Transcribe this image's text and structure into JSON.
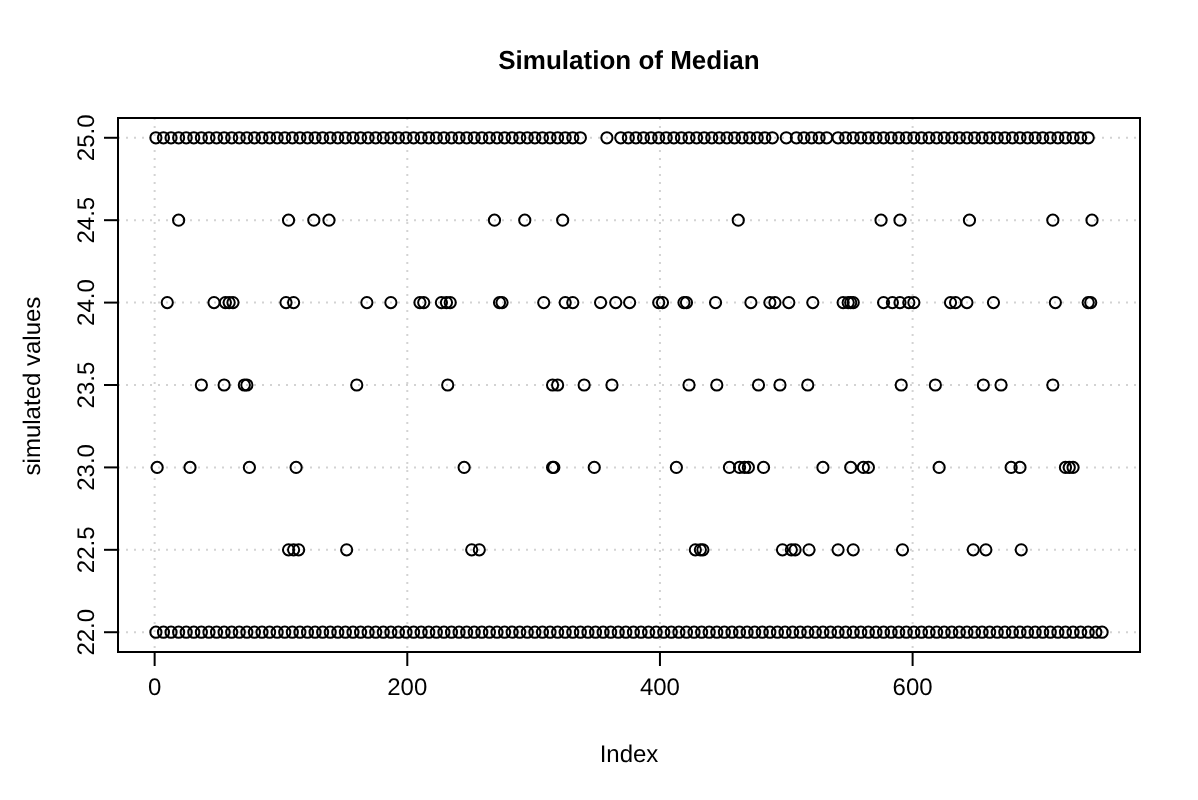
{
  "chart_data": {
    "type": "scatter",
    "title": "Simulation of Median",
    "xlabel": "Index",
    "ylabel": "simulated values",
    "color": "#000000",
    "marker": "circle",
    "grid": true,
    "xlim": [
      -29,
      780
    ],
    "xticks": [
      0,
      200,
      400,
      600
    ],
    "ylim": [
      21.88,
      25.12
    ],
    "yticks": [
      {
        "value": 22,
        "label": "22.0"
      },
      22.5,
      {
        "value": 23,
        "label": "23.0"
      },
      23.5,
      {
        "value": 24,
        "label": "24.0"
      },
      24.5,
      {
        "value": 25,
        "label": "25.0"
      }
    ],
    "x": [
      1,
      7,
      13,
      19,
      25,
      31,
      37,
      43,
      49,
      55,
      61,
      67,
      73,
      79,
      85,
      91,
      97,
      103,
      109,
      115,
      121,
      127,
      133,
      139,
      145,
      151,
      157,
      163,
      169,
      175,
      181,
      187,
      193,
      199,
      205,
      211,
      217,
      223,
      229,
      235,
      241,
      247,
      253,
      259,
      265,
      271,
      277,
      283,
      289,
      295,
      301,
      307,
      313,
      319,
      325,
      331,
      337,
      358,
      369,
      375,
      381,
      387,
      393,
      399,
      405,
      411,
      417,
      423,
      429,
      435,
      441,
      447,
      453,
      459,
      465,
      471,
      477,
      483,
      489,
      500,
      508,
      514,
      520,
      526,
      532,
      541,
      547,
      553,
      559,
      565,
      571,
      577,
      583,
      589,
      595,
      601,
      607,
      613,
      619,
      625,
      631,
      637,
      643,
      649,
      655,
      661,
      667,
      673,
      679,
      685,
      691,
      697,
      703,
      709,
      715,
      721,
      727,
      733,
      739,
      19,
      106,
      126,
      138,
      269,
      293,
      323,
      462,
      575,
      590,
      645,
      711,
      742,
      10,
      47,
      56,
      59,
      62,
      104,
      110,
      168,
      187,
      210,
      213,
      227,
      231,
      234,
      273,
      275,
      308,
      325,
      331,
      353,
      365,
      376,
      399,
      402,
      419,
      421,
      444,
      472,
      487,
      491,
      502,
      521,
      545,
      549,
      551,
      553,
      577,
      584,
      590,
      597,
      601,
      630,
      634,
      643,
      664,
      713,
      739,
      741,
      37,
      55,
      71,
      73,
      160,
      232,
      315,
      319,
      340,
      362,
      423,
      445,
      478,
      495,
      517,
      591,
      618,
      656,
      670,
      711,
      2,
      28,
      75,
      112,
      245,
      315,
      316,
      348,
      413,
      455,
      463,
      467,
      470,
      482,
      529,
      551,
      561,
      565,
      621,
      678,
      685,
      721,
      724,
      727,
      106,
      110,
      114,
      152,
      251,
      257,
      428,
      432,
      434,
      497,
      504,
      507,
      518,
      541,
      553,
      592,
      648,
      658,
      686,
      1,
      7,
      13,
      19,
      25,
      31,
      37,
      43,
      49,
      55,
      61,
      67,
      73,
      79,
      85,
      91,
      97,
      103,
      109,
      115,
      121,
      127,
      133,
      139,
      145,
      151,
      157,
      163,
      169,
      175,
      181,
      187,
      193,
      199,
      205,
      211,
      217,
      223,
      229,
      235,
      241,
      247,
      253,
      259,
      265,
      271,
      277,
      283,
      289,
      295,
      301,
      307,
      313,
      319,
      325,
      331,
      337,
      343,
      349,
      355,
      361,
      367,
      373,
      379,
      385,
      391,
      397,
      403,
      409,
      415,
      421,
      427,
      433,
      439,
      445,
      451,
      457,
      463,
      469,
      475,
      481,
      487,
      493,
      499,
      505,
      511,
      517,
      523,
      529,
      535,
      541,
      547,
      553,
      559,
      565,
      571,
      577,
      583,
      589,
      595,
      601,
      607,
      613,
      619,
      625,
      631,
      637,
      643,
      649,
      655,
      661,
      667,
      673,
      679,
      685,
      691,
      697,
      703,
      709,
      715,
      721,
      727,
      733,
      739,
      745,
      750
    ],
    "values": [
      25,
      25,
      25,
      25,
      25,
      25,
      25,
      25,
      25,
      25,
      25,
      25,
      25,
      25,
      25,
      25,
      25,
      25,
      25,
      25,
      25,
      25,
      25,
      25,
      25,
      25,
      25,
      25,
      25,
      25,
      25,
      25,
      25,
      25,
      25,
      25,
      25,
      25,
      25,
      25,
      25,
      25,
      25,
      25,
      25,
      25,
      25,
      25,
      25,
      25,
      25,
      25,
      25,
      25,
      25,
      25,
      25,
      25,
      25,
      25,
      25,
      25,
      25,
      25,
      25,
      25,
      25,
      25,
      25,
      25,
      25,
      25,
      25,
      25,
      25,
      25,
      25,
      25,
      25,
      25,
      25,
      25,
      25,
      25,
      25,
      25,
      25,
      25,
      25,
      25,
      25,
      25,
      25,
      25,
      25,
      25,
      25,
      25,
      25,
      25,
      25,
      25,
      25,
      25,
      25,
      25,
      25,
      25,
      25,
      25,
      25,
      25,
      25,
      25,
      25,
      25,
      25,
      25,
      25,
      24.5,
      24.5,
      24.5,
      24.5,
      24.5,
      24.5,
      24.5,
      24.5,
      24.5,
      24.5,
      24.5,
      24.5,
      24.5,
      24,
      24,
      24,
      24,
      24,
      24,
      24,
      24,
      24,
      24,
      24,
      24,
      24,
      24,
      24,
      24,
      24,
      24,
      24,
      24,
      24,
      24,
      24,
      24,
      24,
      24,
      24,
      24,
      24,
      24,
      24,
      24,
      24,
      24,
      24,
      24,
      24,
      24,
      24,
      24,
      24,
      24,
      24,
      24,
      24,
      24,
      24,
      24,
      23.5,
      23.5,
      23.5,
      23.5,
      23.5,
      23.5,
      23.5,
      23.5,
      23.5,
      23.5,
      23.5,
      23.5,
      23.5,
      23.5,
      23.5,
      23.5,
      23.5,
      23.5,
      23.5,
      23.5,
      23,
      23,
      23,
      23,
      23,
      23,
      23,
      23,
      23,
      23,
      23,
      23,
      23,
      23,
      23,
      23,
      23,
      23,
      23,
      23,
      23,
      23,
      23,
      23,
      22.5,
      22.5,
      22.5,
      22.5,
      22.5,
      22.5,
      22.5,
      22.5,
      22.5,
      22.5,
      22.5,
      22.5,
      22.5,
      22.5,
      22.5,
      22.5,
      22.5,
      22.5,
      22.5,
      22,
      22,
      22,
      22,
      22,
      22,
      22,
      22,
      22,
      22,
      22,
      22,
      22,
      22,
      22,
      22,
      22,
      22,
      22,
      22,
      22,
      22,
      22,
      22,
      22,
      22,
      22,
      22,
      22,
      22,
      22,
      22,
      22,
      22,
      22,
      22,
      22,
      22,
      22,
      22,
      22,
      22,
      22,
      22,
      22,
      22,
      22,
      22,
      22,
      22,
      22,
      22,
      22,
      22,
      22,
      22,
      22,
      22,
      22,
      22,
      22,
      22,
      22,
      22,
      22,
      22,
      22,
      22,
      22,
      22,
      22,
      22,
      22,
      22,
      22,
      22,
      22,
      22,
      22,
      22,
      22,
      22,
      22,
      22,
      22,
      22,
      22,
      22,
      22,
      22,
      22,
      22,
      22,
      22,
      22,
      22,
      22,
      22,
      22,
      22,
      22,
      22,
      22,
      22,
      22,
      22,
      22,
      22,
      22,
      22,
      22,
      22,
      22,
      22,
      22,
      22,
      22,
      22,
      22,
      22,
      22,
      22,
      22,
      22,
      22,
      22
    ]
  }
}
